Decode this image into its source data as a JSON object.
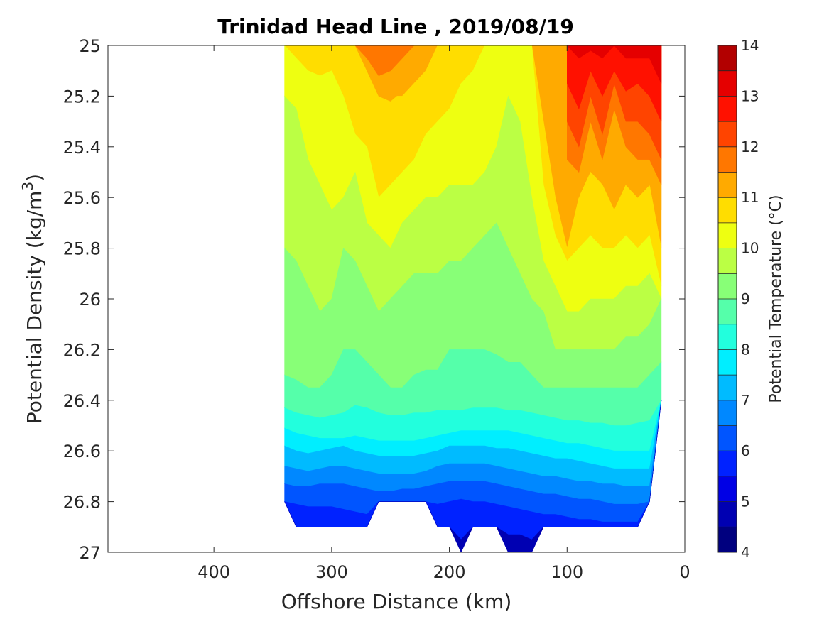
{
  "chart_data": {
    "type": "heatmap",
    "subtype": "filled-contour",
    "title": "Trinidad Head Line , 2019/08/19",
    "xlabel": "Offshore Distance (km)",
    "ylabel": {
      "base": "Potential Density (kg/m",
      "sup": "3",
      "tail": ")"
    },
    "xlim": [
      490,
      0
    ],
    "x_reversed": true,
    "ylim": [
      25,
      27
    ],
    "y_reversed": true,
    "xticks": [
      400,
      300,
      200,
      100,
      0
    ],
    "xtick_labels": [
      "400",
      "300",
      "200",
      "100",
      "0"
    ],
    "yticks": [
      25,
      25.2,
      25.4,
      25.6,
      25.8,
      26,
      26.2,
      26.4,
      26.6,
      26.8,
      27
    ],
    "ytick_labels": [
      "25",
      "25.2",
      "25.4",
      "25.6",
      "25.8",
      "26",
      "26.2",
      "26.4",
      "26.6",
      "26.8",
      "27"
    ],
    "colorbar": {
      "label": "Potential Temperature (°C)",
      "range": [
        4,
        14
      ],
      "ticks": [
        "4",
        "5",
        "6",
        "7",
        "8",
        "9",
        "10",
        "11",
        "12",
        "13",
        "14"
      ],
      "level_step": 0.5,
      "colormap": "jet",
      "colors": [
        "#00007f",
        "#0000b2",
        "#0000e5",
        "#0022ff",
        "#0055ff",
        "#0088ff",
        "#00bbff",
        "#00eeff",
        "#22ffdd",
        "#55ffaa",
        "#88ff77",
        "#bbff44",
        "#eeff11",
        "#ffdd00",
        "#ffaa00",
        "#ff7700",
        "#ff4400",
        "#ff1100",
        "#e50000",
        "#b20000"
      ]
    },
    "x": [
      340,
      330,
      320,
      310,
      300,
      290,
      280,
      270,
      260,
      250,
      240,
      230,
      220,
      210,
      200,
      190,
      180,
      170,
      160,
      150,
      140,
      130,
      120,
      110,
      100,
      90,
      80,
      70,
      60,
      50,
      40,
      30,
      20
    ],
    "bottom": [
      26.8,
      26.9,
      26.9,
      26.9,
      26.9,
      26.9,
      26.9,
      26.9,
      26.8,
      26.8,
      26.8,
      26.8,
      26.8,
      26.9,
      26.9,
      27.0,
      26.9,
      26.9,
      26.9,
      27.0,
      27.0,
      27.0,
      26.9,
      26.9,
      26.9,
      26.9,
      26.9,
      26.9,
      26.9,
      26.9,
      26.9,
      26.8,
      26.4
    ],
    "isotherms": [
      {
        "level": 10.5,
        "y": [
          25.0,
          25.0,
          25.0,
          25.0,
          25.0,
          25.0,
          25.0,
          25.1,
          25.2,
          25.2,
          25.2,
          25.15,
          25.1,
          25.0,
          25.0,
          25.0,
          25.0,
          25.0,
          25.0,
          25.0,
          25.0,
          25.0,
          25.3,
          25.6,
          25.8,
          25.6,
          25.5,
          25.55,
          25.65,
          25.55,
          25.6,
          25.55,
          25.8
        ]
      },
      {
        "level": 10.0,
        "y": [
          25.0,
          25.05,
          25.1,
          25.12,
          25.1,
          25.2,
          25.35,
          25.4,
          25.6,
          25.55,
          25.5,
          25.45,
          25.35,
          25.3,
          25.25,
          25.15,
          25.1,
          25.0,
          25.0,
          25.0,
          25.0,
          25.0,
          25.55,
          25.75,
          25.85,
          25.8,
          25.75,
          25.8,
          25.8,
          25.75,
          25.8,
          25.75,
          25.95
        ]
      },
      {
        "level": 9.5,
        "y": [
          25.2,
          25.25,
          25.45,
          25.55,
          25.65,
          25.6,
          25.5,
          25.7,
          25.75,
          25.8,
          25.7,
          25.65,
          25.6,
          25.6,
          25.55,
          25.55,
          25.55,
          25.5,
          25.4,
          25.2,
          25.3,
          25.6,
          25.85,
          25.95,
          26.05,
          26.05,
          26.0,
          26.0,
          26.0,
          25.95,
          25.95,
          25.9,
          26.0
        ]
      },
      {
        "level": 9.0,
        "y": [
          25.8,
          25.85,
          25.95,
          26.05,
          26.0,
          25.8,
          25.85,
          25.95,
          26.05,
          26.0,
          25.95,
          25.9,
          25.9,
          25.9,
          25.85,
          25.85,
          25.8,
          25.75,
          25.7,
          25.8,
          25.9,
          26.0,
          26.05,
          26.2,
          26.2,
          26.2,
          26.2,
          26.2,
          26.2,
          26.15,
          26.15,
          26.1,
          26.0
        ]
      },
      {
        "level": 8.5,
        "y": [
          26.3,
          26.32,
          26.35,
          26.35,
          26.3,
          26.2,
          26.2,
          26.25,
          26.3,
          26.35,
          26.35,
          26.3,
          26.28,
          26.28,
          26.2,
          26.2,
          26.2,
          26.2,
          26.22,
          26.25,
          26.25,
          26.3,
          26.35,
          26.35,
          26.35,
          26.35,
          26.35,
          26.35,
          26.35,
          26.35,
          26.35,
          26.3,
          26.25
        ]
      },
      {
        "level": 8.0,
        "y": [
          26.43,
          26.45,
          26.46,
          26.47,
          26.46,
          26.45,
          26.42,
          26.43,
          26.45,
          26.46,
          26.46,
          26.45,
          26.45,
          26.44,
          26.44,
          26.44,
          26.43,
          26.43,
          26.43,
          26.44,
          26.44,
          26.45,
          26.46,
          26.47,
          26.48,
          26.48,
          26.49,
          26.49,
          26.5,
          26.5,
          26.49,
          26.48,
          26.42
        ]
      },
      {
        "level": 7.5,
        "y": [
          26.51,
          26.53,
          26.54,
          26.55,
          26.55,
          26.55,
          26.54,
          26.55,
          26.56,
          26.56,
          26.56,
          26.56,
          26.55,
          26.54,
          26.53,
          26.52,
          26.52,
          26.52,
          26.52,
          26.52,
          26.53,
          26.54,
          26.55,
          26.56,
          26.57,
          26.57,
          26.58,
          26.59,
          26.6,
          26.6,
          26.6,
          26.6,
          26.5
        ]
      },
      {
        "level": 7.0,
        "y": [
          26.58,
          26.6,
          26.61,
          26.6,
          26.59,
          26.58,
          26.6,
          26.61,
          26.62,
          26.62,
          26.62,
          26.62,
          26.61,
          26.6,
          26.58,
          26.58,
          26.58,
          26.58,
          26.59,
          26.59,
          26.6,
          26.61,
          26.62,
          26.63,
          26.63,
          26.64,
          26.65,
          26.66,
          26.67,
          26.67,
          26.67,
          26.67,
          26.6
        ]
      },
      {
        "level": 6.5,
        "y": [
          26.66,
          26.67,
          26.68,
          26.67,
          26.66,
          26.66,
          26.67,
          26.68,
          26.69,
          26.69,
          26.69,
          26.69,
          26.68,
          26.66,
          26.65,
          26.65,
          26.65,
          26.65,
          26.66,
          26.67,
          26.68,
          26.69,
          26.7,
          26.7,
          26.71,
          26.72,
          26.72,
          26.73,
          26.73,
          26.74,
          26.74,
          26.74,
          26.65
        ]
      },
      {
        "level": 6.0,
        "y": [
          26.73,
          26.74,
          26.74,
          26.73,
          26.73,
          26.73,
          26.74,
          26.75,
          26.76,
          26.76,
          26.75,
          26.75,
          26.74,
          26.73,
          26.72,
          26.72,
          26.72,
          26.72,
          26.73,
          26.74,
          26.75,
          26.76,
          26.77,
          26.77,
          26.78,
          26.79,
          26.79,
          26.8,
          26.81,
          26.81,
          26.81,
          26.8,
          26.72
        ]
      },
      {
        "level": 5.5,
        "y": [
          26.8,
          26.81,
          26.82,
          26.82,
          26.82,
          26.83,
          26.84,
          26.85,
          26.8,
          26.8,
          26.8,
          26.8,
          26.8,
          26.81,
          26.8,
          26.79,
          26.8,
          26.8,
          26.81,
          26.82,
          26.83,
          26.84,
          26.85,
          26.85,
          26.86,
          26.87,
          26.87,
          26.88,
          26.88,
          26.88,
          26.88,
          26.8,
          26.8
        ]
      },
      {
        "level": 5.0,
        "y": [
          26.9,
          26.9,
          26.9,
          26.9,
          26.9,
          26.9,
          26.9,
          26.9,
          26.8,
          26.8,
          26.8,
          26.8,
          26.8,
          26.9,
          26.92,
          26.95,
          26.9,
          26.9,
          26.9,
          26.93,
          26.93,
          26.95,
          26.9,
          26.9,
          26.9,
          26.9,
          26.9,
          26.9,
          26.9,
          26.9,
          26.9,
          26.8,
          26.8
        ]
      }
    ],
    "warm_region": {
      "x": [
        100,
        90,
        80,
        70,
        60,
        50,
        40,
        30,
        20
      ],
      "contours": [
        {
          "level": 13.0,
          "y": [
            25.0,
            25.05,
            25.02,
            25.05,
            25.0,
            25.05,
            25.05,
            25.05,
            25.15
          ]
        },
        {
          "level": 12.5,
          "y": [
            25.15,
            25.25,
            25.1,
            25.2,
            25.1,
            25.18,
            25.15,
            25.2,
            25.3
          ]
        },
        {
          "level": 12.0,
          "y": [
            25.3,
            25.4,
            25.2,
            25.35,
            25.15,
            25.3,
            25.3,
            25.35,
            25.45
          ]
        },
        {
          "level": 11.5,
          "y": [
            25.45,
            25.5,
            25.3,
            25.45,
            25.25,
            25.4,
            25.45,
            25.45,
            25.55
          ]
        },
        {
          "level": 11.0,
          "y": [
            25.6,
            25.6,
            25.45,
            25.55,
            25.4,
            25.55,
            25.6,
            25.55,
            25.65
          ]
        }
      ]
    },
    "top_warm_pool": {
      "x": [
        280,
        270,
        260,
        250,
        240,
        230,
        220
      ],
      "contours": [
        {
          "level": 11.5,
          "y": [
            25.0,
            25.05,
            25.12,
            25.1,
            25.05,
            25.0,
            25.0
          ]
        },
        {
          "level": 11.0,
          "y": [
            25.0,
            25.1,
            25.2,
            25.22,
            25.18,
            25.1,
            25.05
          ]
        }
      ]
    }
  }
}
